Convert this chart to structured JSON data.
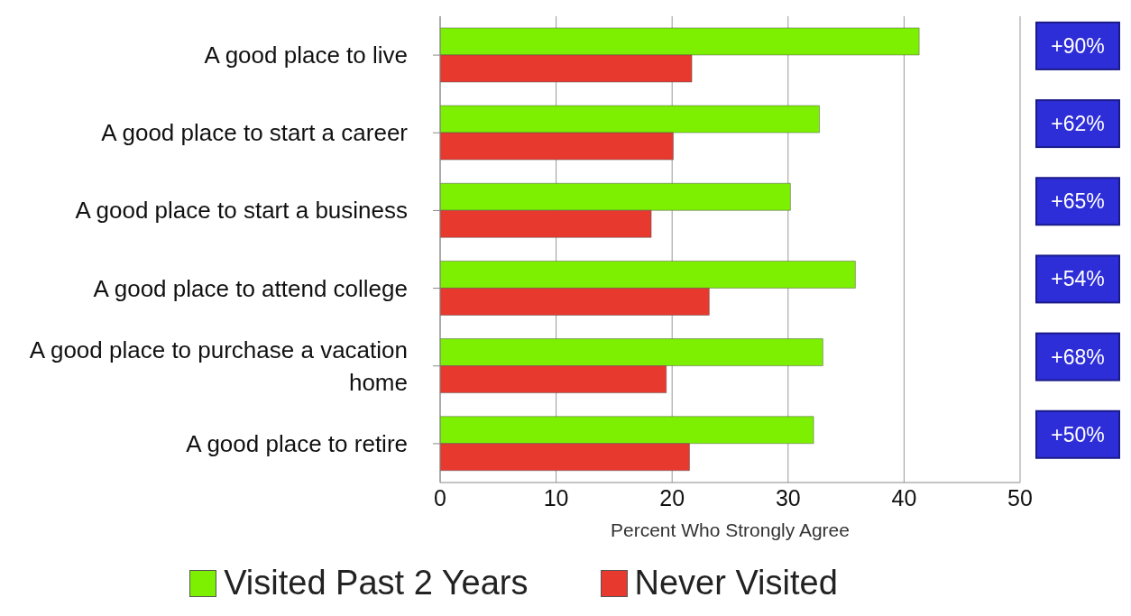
{
  "chart_data": {
    "type": "bar",
    "orientation": "horizontal",
    "xlabel": "Percent Who Strongly Agree",
    "categories": [
      "A good place to live",
      "A good place to start a career",
      "A good place to start a business",
      "A good place to attend college",
      "A good place to purchase a vacation home",
      "A good place to retire"
    ],
    "series": [
      {
        "name": "Visited Past 2 Years",
        "color": "#7cf000",
        "values": [
          41.3,
          32.7,
          30.2,
          35.8,
          33.0,
          32.2
        ]
      },
      {
        "name": "Never Visited",
        "color": "#e8392e",
        "values": [
          21.7,
          20.1,
          18.2,
          23.2,
          19.5,
          21.5
        ]
      }
    ],
    "xlim": [
      0,
      50
    ],
    "xticks": [
      0,
      10,
      20,
      30,
      40,
      50
    ],
    "grid": "x",
    "legend": "bottom",
    "annotations": [
      "+90%",
      "+62%",
      "+65%",
      "+54%",
      "+68%",
      "+50%"
    ]
  }
}
